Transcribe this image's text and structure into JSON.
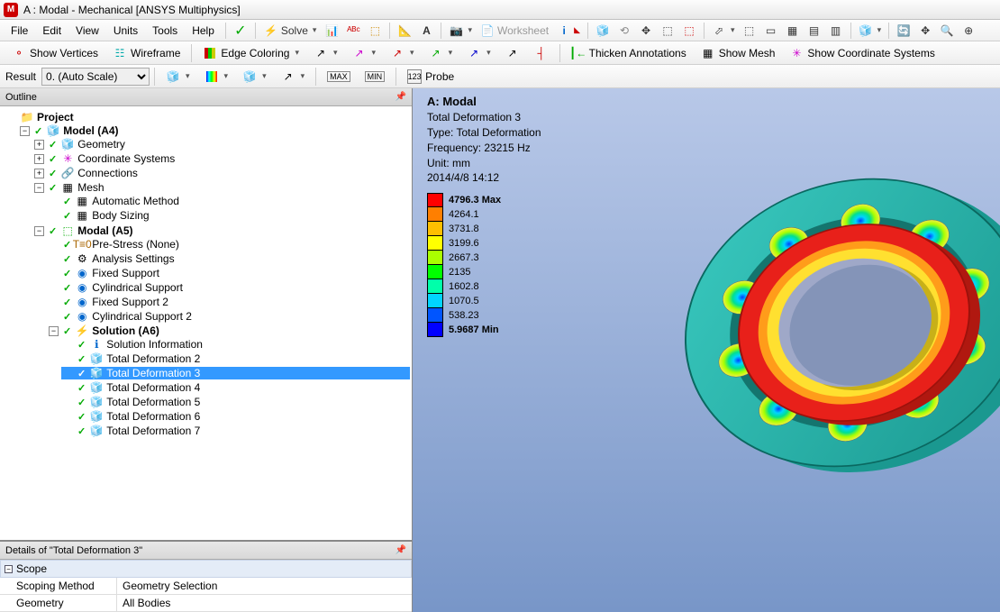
{
  "title": "A : Modal - Mechanical [ANSYS Multiphysics]",
  "menu": [
    "File",
    "Edit",
    "View",
    "Units",
    "Tools",
    "Help"
  ],
  "toolbar1": {
    "solve": "Solve",
    "worksheet": "Worksheet"
  },
  "toolbar2": {
    "show_vertices": "Show Vertices",
    "wireframe": "Wireframe",
    "edge_coloring": "Edge Coloring",
    "thicken": "Thicken Annotations",
    "show_mesh": "Show Mesh",
    "show_cs": "Show Coordinate Systems"
  },
  "toolbar3": {
    "result_label": "Result",
    "scale_value": "0. (Auto Scale)",
    "probe": "Probe"
  },
  "outline_title": "Outline",
  "tree": {
    "project": "Project",
    "model": "Model (A4)",
    "geometry": "Geometry",
    "cs": "Coordinate Systems",
    "connections": "Connections",
    "mesh": "Mesh",
    "auto_method": "Automatic Method",
    "body_sizing": "Body Sizing",
    "modal": "Modal (A5)",
    "prestress": "Pre-Stress (None)",
    "analysis": "Analysis Settings",
    "fixed": "Fixed Support",
    "cyl": "Cylindrical Support",
    "fixed2": "Fixed Support 2",
    "cyl2": "Cylindrical Support 2",
    "solution": "Solution (A6)",
    "sol_info": "Solution Information",
    "td2": "Total Deformation 2",
    "td3": "Total Deformation 3",
    "td4": "Total Deformation 4",
    "td5": "Total Deformation 5",
    "td6": "Total Deformation 6",
    "td7": "Total Deformation 7"
  },
  "details": {
    "title": "Details of \"Total Deformation 3\"",
    "scope": "Scope",
    "scoping_method_k": "Scoping Method",
    "scoping_method_v": "Geometry Selection",
    "geometry_k": "Geometry",
    "geometry_v": "All Bodies"
  },
  "viewport": {
    "title": "A: Modal",
    "subtitle": "Total Deformation 3",
    "type": "Type: Total Deformation",
    "freq": "Frequency: 23215 Hz",
    "unit": "Unit: mm",
    "datetime": "2014/4/8 14:12"
  },
  "legend": [
    {
      "color": "#ff0000",
      "label": "4796.3 Max"
    },
    {
      "color": "#ff7f00",
      "label": "4264.1"
    },
    {
      "color": "#ffbf00",
      "label": "3731.8"
    },
    {
      "color": "#ffff00",
      "label": "3199.6"
    },
    {
      "color": "#aaff00",
      "label": "2667.3"
    },
    {
      "color": "#00ff00",
      "label": "2135"
    },
    {
      "color": "#00ffaa",
      "label": "1602.8"
    },
    {
      "color": "#00d4ff",
      "label": "1070.5"
    },
    {
      "color": "#0055ff",
      "label": "538.23"
    },
    {
      "color": "#0000ff",
      "label": "5.9687 Min"
    }
  ],
  "bearing_colors": {
    "outer": "#2ab8b0",
    "inner_red": "#e8201a",
    "inner_orange": "#ff9c1a",
    "inner_yellow": "#ffe030",
    "ball_center": "#0040ff",
    "ball_mid": "#00e090",
    "ball_outer": "#f0f040"
  }
}
